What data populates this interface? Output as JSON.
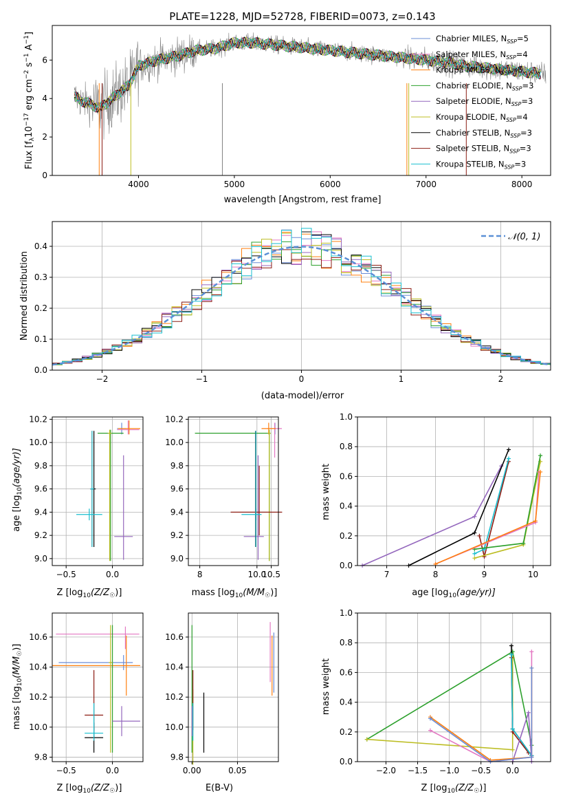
{
  "figure": {
    "title": "PLATE=1228, MJD=52728, FIBERID=0073, z=0.143"
  },
  "colors": {
    "cm": "#6a8cd5",
    "sm": "#e377c2",
    "km": "#ff7f0e",
    "ce": "#2ca02c",
    "se": "#9467bd",
    "ke": "#bcbd22",
    "cs": "#000000",
    "ss": "#8c1c13",
    "ks": "#17becf",
    "obs": "#808080",
    "normal": "#5b8fd6"
  },
  "legend_spectrum": [
    {
      "key": "cm",
      "base": "Chabrier MILES, N",
      "nssp": "5"
    },
    {
      "key": "sm",
      "base": "Salpeter MILES, N",
      "nssp": "4"
    },
    {
      "key": "km",
      "base": "Kroupa MILES, N",
      "nssp": "5"
    },
    {
      "key": "ce",
      "base": "Chabrier ELODIE, N",
      "nssp": "3"
    },
    {
      "key": "se",
      "base": "Salpeter ELODIE, N",
      "nssp": "3"
    },
    {
      "key": "ke",
      "base": "Kroupa ELODIE, N",
      "nssp": "4"
    },
    {
      "key": "cs",
      "base": "Chabrier STELIB, N",
      "nssp": "3"
    },
    {
      "key": "ss",
      "base": "Salpeter STELIB, N",
      "nssp": "3"
    },
    {
      "key": "ks",
      "base": "Kroupa STELIB, N",
      "nssp": "3"
    }
  ],
  "chart_data": [
    {
      "id": "spectrum",
      "type": "line",
      "title": "PLATE=1228, MJD=52728, FIBERID=0073, z=0.143",
      "xlabel": "wavelength [Angstrom, rest frame]",
      "ylabel": "Flux [f_λ 10^-17 erg cm^-2 s^-1 A^-1]",
      "xlim": [
        3100,
        8300
      ],
      "ylim": [
        0,
        7.8
      ],
      "xticks": [
        4000,
        5000,
        6000,
        7000,
        8000
      ],
      "yticks": [
        0,
        2,
        4,
        6
      ],
      "continuum": {
        "x": [
          3330,
          3400,
          3500,
          3600,
          3700,
          3800,
          3900,
          4000,
          4200,
          4400,
          4600,
          4800,
          5000,
          5200,
          5400,
          5600,
          5800,
          6000,
          6200,
          6400,
          6600,
          6800,
          7000,
          7200,
          7400,
          7600,
          7800,
          8000,
          8200,
          8260
        ],
        "y": [
          4.1,
          3.9,
          3.7,
          3.5,
          3.9,
          4.3,
          4.7,
          5.7,
          6.0,
          6.2,
          6.5,
          6.6,
          6.9,
          6.9,
          6.8,
          6.7,
          6.6,
          6.5,
          6.4,
          6.3,
          6.2,
          6.1,
          6.0,
          5.9,
          5.7,
          5.6,
          5.5,
          5.4,
          5.3,
          5.3
        ]
      },
      "series": [
        "cm",
        "sm",
        "km",
        "ce",
        "se",
        "ke",
        "cs",
        "ss",
        "ks"
      ],
      "observed_range": [
        3330,
        8250
      ]
    },
    {
      "id": "residuals",
      "type": "area",
      "xlabel": "(data-model)/error",
      "ylabel": "Normed distribution",
      "xlim": [
        -2.5,
        2.5
      ],
      "ylim": [
        0,
        0.48
      ],
      "xticks": [
        -2,
        -1,
        0,
        1,
        2
      ],
      "yticks": [
        0,
        0.1,
        0.2,
        0.3,
        0.4
      ],
      "bin_width": 0.1,
      "legend": "𝒩(0,1)"
    },
    {
      "id": "age-vs-Z",
      "type": "scatter",
      "xlabel": "Z [log10(Z/Z☉)]",
      "ylabel": "age  [log10(age/yr)]",
      "xlim": [
        -0.65,
        0.33
      ],
      "ylim": [
        8.94,
        10.22
      ],
      "xticks": [
        -0.5,
        0.0
      ],
      "yticks": [
        9.0,
        9.2,
        9.4,
        9.6,
        9.8,
        10.0,
        10.2
      ],
      "points": [
        {
          "k": "cm",
          "x": 0.1,
          "xe": [
            0.05,
            0.05
          ],
          "y": 10.12,
          "ye": [
            0.05,
            0.05
          ]
        },
        {
          "k": "sm",
          "x": 0.17,
          "xe": [
            0.12,
            0.12
          ],
          "y": 10.11,
          "ye": [
            0.04,
            0.08
          ]
        },
        {
          "k": "km",
          "x": 0.18,
          "xe": [
            0.12,
            0.12
          ],
          "y": 10.12,
          "ye": [
            0.05,
            0.07
          ]
        },
        {
          "k": "ce",
          "x": -0.02,
          "xe": [
            0.14,
            0.14
          ],
          "y": 10.08,
          "ye": [
            1.1,
            0.03
          ]
        },
        {
          "k": "se",
          "x": 0.12,
          "xe": [
            0.1,
            0.1
          ],
          "y": 9.19,
          "ye": [
            0.2,
            0.7
          ]
        },
        {
          "k": "ke",
          "x": -0.03,
          "xe": [
            0.02,
            0.02
          ],
          "y": 10.08,
          "ye": [
            1.1,
            0.03
          ]
        },
        {
          "k": "cs",
          "x": -0.2,
          "xe": [
            0.02,
            0.02
          ],
          "y": 9.6,
          "ye": [
            0.5,
            0.5
          ]
        },
        {
          "k": "ss",
          "x": -0.22,
          "xe": [
            0.02,
            0.02
          ],
          "y": 9.6,
          "ye": [
            0.5,
            0.5
          ]
        },
        {
          "k": "ks",
          "x": -0.25,
          "xe": [
            0.14,
            0.14
          ],
          "y": 9.38,
          "ye": [
            0.05,
            0.05
          ]
        },
        {
          "k": "ks",
          "x": -0.22,
          "xe": [
            0.02,
            0.02
          ],
          "y": 9.6,
          "ye": [
            0.5,
            0.5
          ]
        }
      ]
    },
    {
      "id": "age-vs-mass",
      "type": "scatter",
      "xlabel": "mass [log10(M/M☉)]",
      "ylabel": "",
      "xlim": [
        7.6,
        10.75
      ],
      "ylim": [
        8.94,
        10.22
      ],
      "xticks": [
        8,
        10.0,
        10.5
      ],
      "yticks": [
        9.0,
        9.2,
        9.4,
        9.6,
        9.8,
        10.0,
        10.2
      ],
      "points": [
        {
          "k": "cm",
          "x": 10.63,
          "xe": [
            0.0,
            0.0
          ],
          "y": 10.12,
          "ye": [
            0.05,
            0.05
          ]
        },
        {
          "k": "sm",
          "x": 10.62,
          "xe": [
            0.25,
            0.25
          ],
          "y": 10.12,
          "ye": [
            0.25,
            0.05
          ]
        },
        {
          "k": "km",
          "x": 10.41,
          "xe": [
            0.25,
            0.25
          ],
          "y": 10.12,
          "ye": [
            0.05,
            0.05
          ]
        },
        {
          "k": "ce",
          "x": 10.43,
          "xe": [
            2.6,
            0.05
          ],
          "y": 10.08,
          "ye": [
            1.1,
            0.03
          ]
        },
        {
          "k": "se",
          "x": 10.04,
          "xe": [
            0.5,
            0.2
          ],
          "y": 9.19,
          "ye": [
            0.2,
            0.7
          ]
        },
        {
          "k": "ke",
          "x": 10.43,
          "xe": [
            0.05,
            0.05
          ],
          "y": 10.08,
          "ye": [
            1.1,
            0.03
          ]
        },
        {
          "k": "cs",
          "x": 9.95,
          "xe": [
            0.0,
            0.0
          ],
          "y": 9.6,
          "ye": [
            0.5,
            0.5
          ]
        },
        {
          "k": "ss",
          "x": 10.08,
          "xe": [
            1.0,
            0.8
          ],
          "y": 9.4,
          "ye": [
            0.2,
            0.4
          ]
        },
        {
          "k": "ks",
          "x": 9.96,
          "xe": [
            0.5,
            0.2
          ],
          "y": 9.38,
          "ye": [
            0.05,
            0.05
          ]
        },
        {
          "k": "ks",
          "x": 9.96,
          "xe": [
            0.0,
            0.0
          ],
          "y": 9.6,
          "ye": [
            0.5,
            0.5
          ]
        }
      ]
    },
    {
      "id": "mass-weight-vs-age",
      "type": "line",
      "xlabel": "age  [log10(age/yr)]",
      "ylabel": "mass weight",
      "xlim": [
        6.4,
        10.36
      ],
      "ylim": [
        0,
        1.0
      ],
      "xticks": [
        7,
        8,
        9,
        10
      ],
      "yticks": [
        0.0,
        0.2,
        0.4,
        0.6,
        0.8,
        1.0
      ],
      "series": [
        {
          "k": "se",
          "x": [
            6.5,
            8.8,
            9.35
          ],
          "y": [
            0.0,
            0.33,
            0.67
          ]
        },
        {
          "k": "cs",
          "x": [
            7.45,
            8.8,
            9.5
          ],
          "y": [
            0.0,
            0.22,
            0.78
          ]
        },
        {
          "k": "ss",
          "x": [
            8.9,
            9.0,
            9.5
          ],
          "y": [
            0.2,
            0.06,
            0.7
          ]
        },
        {
          "k": "ks",
          "x": [
            8.8,
            9.0,
            9.5
          ],
          "y": [
            0.08,
            0.11,
            0.72
          ]
        },
        {
          "k": "ke",
          "x": [
            8.8,
            9.8,
            10.15
          ],
          "y": [
            0.05,
            0.14,
            0.7
          ]
        },
        {
          "k": "ce",
          "x": [
            8.8,
            9.8,
            10.15
          ],
          "y": [
            0.11,
            0.15,
            0.74
          ]
        },
        {
          "k": "sm",
          "x": [
            8.0,
            10.05,
            10.12
          ],
          "y": [
            0.01,
            0.29,
            0.63
          ]
        },
        {
          "k": "km",
          "x": [
            8.0,
            10.05,
            10.15
          ],
          "y": [
            0.01,
            0.3,
            0.63
          ]
        }
      ]
    },
    {
      "id": "mass-vs-Z",
      "type": "scatter",
      "xlabel": "Z [log10(Z/Z☉)]",
      "ylabel": "mass [log10(M/M☉)]",
      "xlim": [
        -0.65,
        0.33
      ],
      "ylim": [
        9.77,
        10.76
      ],
      "xticks": [
        -0.5,
        0.0
      ],
      "yticks": [
        9.8,
        10.0,
        10.2,
        10.4,
        10.6
      ],
      "points": [
        {
          "k": "cm",
          "x": 0.12,
          "xe": [
            0.7,
            0.1
          ],
          "y": 10.43,
          "ye": [
            0.05,
            0.05
          ]
        },
        {
          "k": "sm",
          "x": 0.14,
          "xe": [
            0.75,
            0.15
          ],
          "y": 10.62,
          "ye": [
            0.1,
            0.05
          ]
        },
        {
          "k": "km",
          "x": 0.15,
          "xe": [
            0.8,
            0.15
          ],
          "y": 10.41,
          "ye": [
            0.2,
            0.2
          ]
        },
        {
          "k": "ce",
          "x": 0.0,
          "xe": [
            0.0,
            0.0
          ],
          "y": 10.43,
          "ye": [
            0.6,
            0.25
          ]
        },
        {
          "k": "se",
          "x": 0.1,
          "xe": [
            0.1,
            0.2
          ],
          "y": 10.04,
          "ye": [
            0.1,
            0.1
          ]
        },
        {
          "k": "ke",
          "x": -0.02,
          "xe": [
            0.02,
            0.02
          ],
          "y": 10.43,
          "ye": [
            0.6,
            0.25
          ]
        },
        {
          "k": "cs",
          "x": -0.2,
          "xe": [
            0.1,
            0.1
          ],
          "y": 9.93,
          "ye": [
            0.1,
            0.1
          ]
        },
        {
          "k": "ss",
          "x": -0.2,
          "xe": [
            0.1,
            0.1
          ],
          "y": 10.08,
          "ye": [
            0.1,
            0.3
          ]
        },
        {
          "k": "ks",
          "x": -0.2,
          "xe": [
            0.1,
            0.1
          ],
          "y": 9.96,
          "ye": [
            0.05,
            0.2
          ]
        }
      ]
    },
    {
      "id": "mass-vs-ebv",
      "type": "scatter",
      "xlabel": "E(B-V)",
      "ylabel": "",
      "xlim": [
        -0.004,
        0.095
      ],
      "ylim": [
        9.77,
        10.76
      ],
      "xticks": [
        0.0,
        0.05
      ],
      "yticks": [
        9.8,
        10.0,
        10.2,
        10.4,
        10.6
      ],
      "points": [
        {
          "k": "cm",
          "x": 0.09,
          "y": 10.43,
          "ye": [
            0.2,
            0.2
          ]
        },
        {
          "k": "sm",
          "x": 0.086,
          "y": 10.5,
          "ye": [
            0.2,
            0.2
          ]
        },
        {
          "k": "km",
          "x": 0.088,
          "y": 10.41,
          "ye": [
            0.2,
            0.2
          ]
        },
        {
          "k": "ce",
          "x": 0.0,
          "y": 10.43,
          "ye": [
            0.6,
            0.25
          ]
        },
        {
          "k": "se",
          "x": 0.0,
          "y": 10.04,
          "ye": [
            0.1,
            0.1
          ]
        },
        {
          "k": "ke",
          "x": 0.001,
          "y": 10.0,
          "ye": [
            0.25,
            0.25
          ]
        },
        {
          "k": "cs",
          "x": 0.013,
          "y": 9.93,
          "ye": [
            0.1,
            0.3
          ]
        },
        {
          "k": "ss",
          "x": 0.001,
          "y": 10.08,
          "ye": [
            0.1,
            0.3
          ]
        },
        {
          "k": "ks",
          "x": 0.001,
          "y": 9.96,
          "ye": [
            0.05,
            0.2
          ]
        }
      ]
    },
    {
      "id": "mass-weight-vs-Z",
      "type": "line",
      "xlabel": "Z [log10(Z/Z☉)]",
      "ylabel": "mass weight",
      "xlim": [
        -2.45,
        0.6
      ],
      "ylim": [
        0,
        1.0
      ],
      "xticks": [
        -2.0,
        -1.5,
        -1.0,
        -0.5,
        0.0
      ],
      "yticks": [
        0.0,
        0.2,
        0.4,
        0.6,
        0.8,
        1.0
      ],
      "series": [
        {
          "k": "ce",
          "x": [
            -2.3,
            0.0,
            0.3
          ],
          "y": [
            0.15,
            0.74,
            0.11
          ]
        },
        {
          "k": "ke",
          "x": [
            -2.3,
            0.0,
            0.0
          ],
          "y": [
            0.15,
            0.08,
            0.7
          ]
        },
        {
          "k": "cs",
          "x": [
            -0.02,
            0.0,
            0.3
          ],
          "y": [
            0.78,
            0.22,
            0.04
          ]
        },
        {
          "k": "ss",
          "x": [
            -0.02,
            0.0,
            0.25
          ],
          "y": [
            0.7,
            0.2,
            0.06
          ]
        },
        {
          "k": "ks",
          "x": [
            -0.02,
            0.0,
            0.3
          ],
          "y": [
            0.72,
            0.22,
            0.04
          ]
        },
        {
          "k": "se",
          "x": [
            0.0,
            0.25,
            0.3
          ],
          "y": [
            0.0,
            0.33,
            0.0
          ]
        },
        {
          "k": "sm",
          "x": [
            -1.3,
            -0.35,
            0.3,
            0.3
          ],
          "y": [
            0.21,
            0.0,
            0.03,
            0.74
          ]
        },
        {
          "k": "km",
          "x": [
            -1.3,
            -0.35,
            0.3,
            0.3
          ],
          "y": [
            0.3,
            0.01,
            0.03,
            0.63
          ]
        },
        {
          "k": "cm",
          "x": [
            -1.3,
            -0.35,
            0.3,
            0.3
          ],
          "y": [
            0.29,
            0.0,
            0.03,
            0.63
          ]
        }
      ]
    }
  ],
  "labels": {
    "p1_ylabel_a": "Flux [f",
    "p1_ylabel_b": "λ",
    "p1_ylabel_c": "10",
    "p1_ylabel_d": "−17",
    "p1_ylabel_e": " erg cm",
    "p1_ylabel_f": "−2",
    "p1_ylabel_g": " s",
    "p1_ylabel_h": "−1",
    "p1_ylabel_i": " A",
    "p1_ylabel_j": "−1",
    "p1_ylabel_k": "]",
    "nssp_sub": "SSP",
    "xlabel_spectrum": "wavelength [Angstrom, rest frame]",
    "xlabel_resid": "(data-model)/error",
    "ylabel_resid": "Normed distribution",
    "legend_normal": "𝒩(0, 1)",
    "z_label": "Z [log",
    "z_label_b": "10",
    "z_label_c": "(Z/Z",
    "z_label_d": "☉",
    "z_label_e": ")]",
    "mass_label": "mass [log",
    "mass_label_b": "10",
    "mass_label_c": "(M/M",
    "mass_label_d": "☉",
    "mass_label_e": ")]",
    "age_label": "age  [log",
    "age_label_b": "10",
    "age_label_c": "(age/yr)]",
    "mass_weight": "mass weight",
    "ebv": "E(B-V)"
  }
}
